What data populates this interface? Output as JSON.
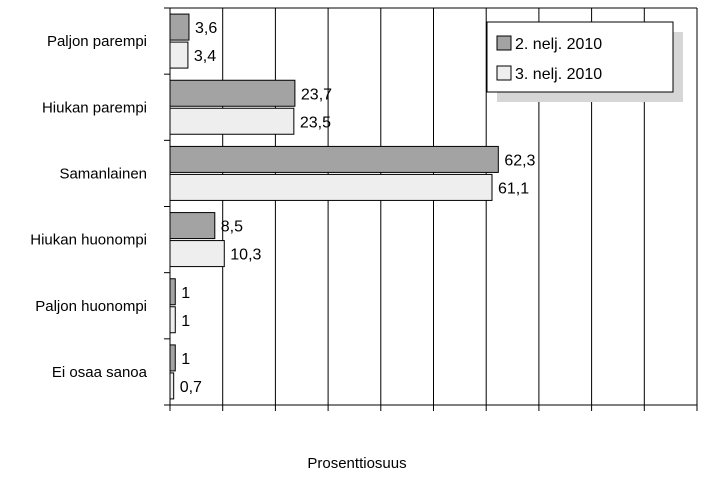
{
  "chart_data": {
    "type": "bar",
    "orientation": "horizontal",
    "categories": [
      "Paljon parempi",
      "Hiukan parempi",
      "Samanlainen",
      "Hiukan huonompi",
      "Paljon huonompi",
      "Ei osaa sanoa"
    ],
    "series": [
      {
        "name": "2. nelj. 2010",
        "values": [
          3.6,
          23.7,
          62.3,
          8.5,
          1,
          1
        ],
        "labels": [
          "3,6",
          "23,7",
          "62,3",
          "8,5",
          "1",
          "1"
        ]
      },
      {
        "name": "3. nelj. 2010",
        "values": [
          3.4,
          23.5,
          61.1,
          10.3,
          1,
          0.7
        ],
        "labels": [
          "3,4",
          "23,5",
          "61,1",
          "10,3",
          "1",
          "0,7"
        ]
      }
    ],
    "xlim": [
      0,
      100
    ],
    "xticks": [
      0,
      10,
      20,
      30,
      40,
      50,
      60,
      70,
      80,
      90,
      100
    ],
    "xlabel": "Prosenttiosuus",
    "ylabel": "",
    "title": "",
    "grid": "vertical",
    "legend_position": "top-right"
  },
  "colors": {
    "series_1": "#a3a3a3",
    "series_2": "#eeeeee",
    "legend_shadow": "#d6d6d6",
    "grid": "#000000"
  }
}
